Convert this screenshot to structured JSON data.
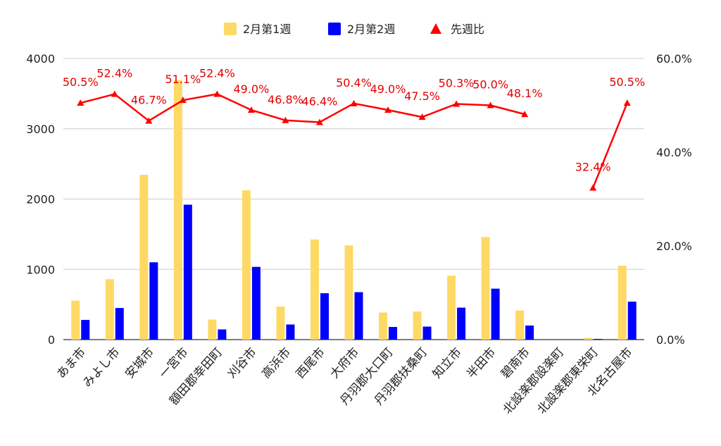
{
  "chart_data": {
    "type": "bar",
    "title": "",
    "categories": [
      "あま市",
      "みよし市",
      "安城市",
      "一宮市",
      "額田郡幸田町",
      "刈谷市",
      "高浜市",
      "西尾市",
      "大府市",
      "丹羽郡大口町",
      "丹羽郡扶桑町",
      "知立市",
      "半田市",
      "碧南市",
      "北設楽郡設楽町",
      "北設楽郡東栄町",
      "北名古屋市"
    ],
    "series": [
      {
        "name": "2月第1週",
        "type": "bar",
        "axis": "left",
        "color": "#FFD966",
        "values": [
          555,
          860,
          2345,
          3690,
          285,
          2125,
          470,
          1425,
          1340,
          385,
          400,
          910,
          1460,
          415,
          null,
          25,
          1050
        ]
      },
      {
        "name": "2月第2週",
        "type": "bar",
        "axis": "left",
        "color": "#0000FF",
        "values": [
          280,
          450,
          1100,
          1920,
          145,
          1035,
          215,
          660,
          675,
          180,
          185,
          455,
          725,
          200,
          null,
          10,
          540
        ]
      },
      {
        "name": "先週比",
        "type": "line",
        "axis": "right",
        "color": "#FF0000",
        "marker": "triangle",
        "values": [
          50.5,
          52.4,
          46.7,
          51.1,
          52.4,
          49.0,
          46.8,
          46.4,
          50.4,
          49.0,
          47.5,
          50.3,
          50.0,
          48.1,
          null,
          32.4,
          50.5
        ],
        "labels": [
          "50.5%",
          "52.4%",
          "46.7%",
          "51.1%",
          "52.4%",
          "49.0%",
          "46.8%",
          "46.4%",
          "50.4%",
          "49.0%",
          "47.5%",
          "50.3%",
          "50.0%",
          "48.1%",
          "",
          "32.4%",
          "50.5%"
        ]
      }
    ],
    "ylim_left": [
      0,
      4000
    ],
    "yticks_left": [
      "0",
      "1000",
      "2000",
      "3000",
      "4000"
    ],
    "ylim_right": [
      0,
      60
    ],
    "yticks_right": [
      "0.0%",
      "20.0%",
      "40.0%",
      "60.0%"
    ],
    "legend": {
      "position": "top",
      "labels": [
        "2月第1週",
        "2月第2週",
        "先週比"
      ]
    },
    "grid": true
  }
}
